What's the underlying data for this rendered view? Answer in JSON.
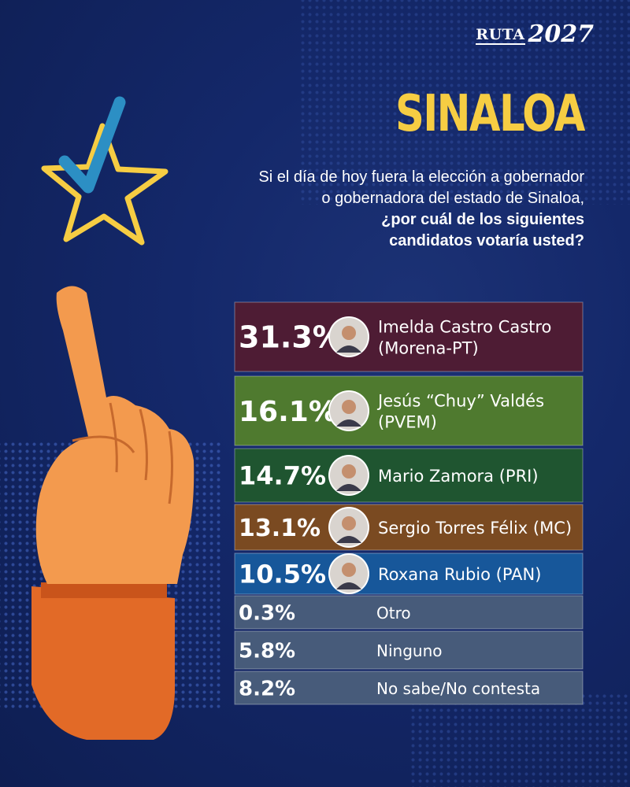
{
  "brand": {
    "word": "RUTA",
    "year": "2027"
  },
  "title": "SINALOA",
  "question": {
    "line1": "Si el día de hoy fuera la elección a gobernador",
    "line2": "o gobernadora del estado de Sinaloa,",
    "line3": "¿por cuál de los siguientes",
    "line4": "candidatos votaría usted?"
  },
  "colors": {
    "title": "#f6cd43",
    "morena": "#4e1c34",
    "pvem": "#4f7a2f",
    "pri": "#1f5530",
    "mc": "#7a4a21",
    "pan": "#17579a",
    "other": "#475b7a",
    "hand": "#f39a4e",
    "sleeve": "#e26a27"
  },
  "chart_data": {
    "type": "table",
    "rows": [
      {
        "percent": "31.3%",
        "value": 31.3,
        "label_lines": [
          "Imelda Castro Castro",
          "(Morena-PT)"
        ],
        "color": "#4e1c34",
        "photo": true
      },
      {
        "percent": "16.1%",
        "value": 16.1,
        "label_lines": [
          "Jesús “Chuy” Valdés",
          "(PVEM)"
        ],
        "color": "#4f7a2f",
        "photo": true
      },
      {
        "percent": "14.7%",
        "value": 14.7,
        "label_lines": [
          "Mario Zamora (PRI)"
        ],
        "color": "#1f5530",
        "photo": true
      },
      {
        "percent": "13.1%",
        "value": 13.1,
        "label_lines": [
          "Sergio Torres Félix (MC)"
        ],
        "color": "#7a4a21",
        "photo": true
      },
      {
        "percent": "10.5%",
        "value": 10.5,
        "label_lines": [
          "Roxana Rubio (PAN)"
        ],
        "color": "#17579a",
        "photo": true
      },
      {
        "percent": "0.3%",
        "value": 0.3,
        "label_lines": [
          "Otro"
        ],
        "color": "#475b7a",
        "photo": false
      },
      {
        "percent": "5.8%",
        "value": 5.8,
        "label_lines": [
          "Ninguno"
        ],
        "color": "#475b7a",
        "photo": false
      },
      {
        "percent": "8.2%",
        "value": 8.2,
        "label_lines": [
          "No sabe/No contesta"
        ],
        "color": "#475b7a",
        "photo": false
      }
    ]
  }
}
